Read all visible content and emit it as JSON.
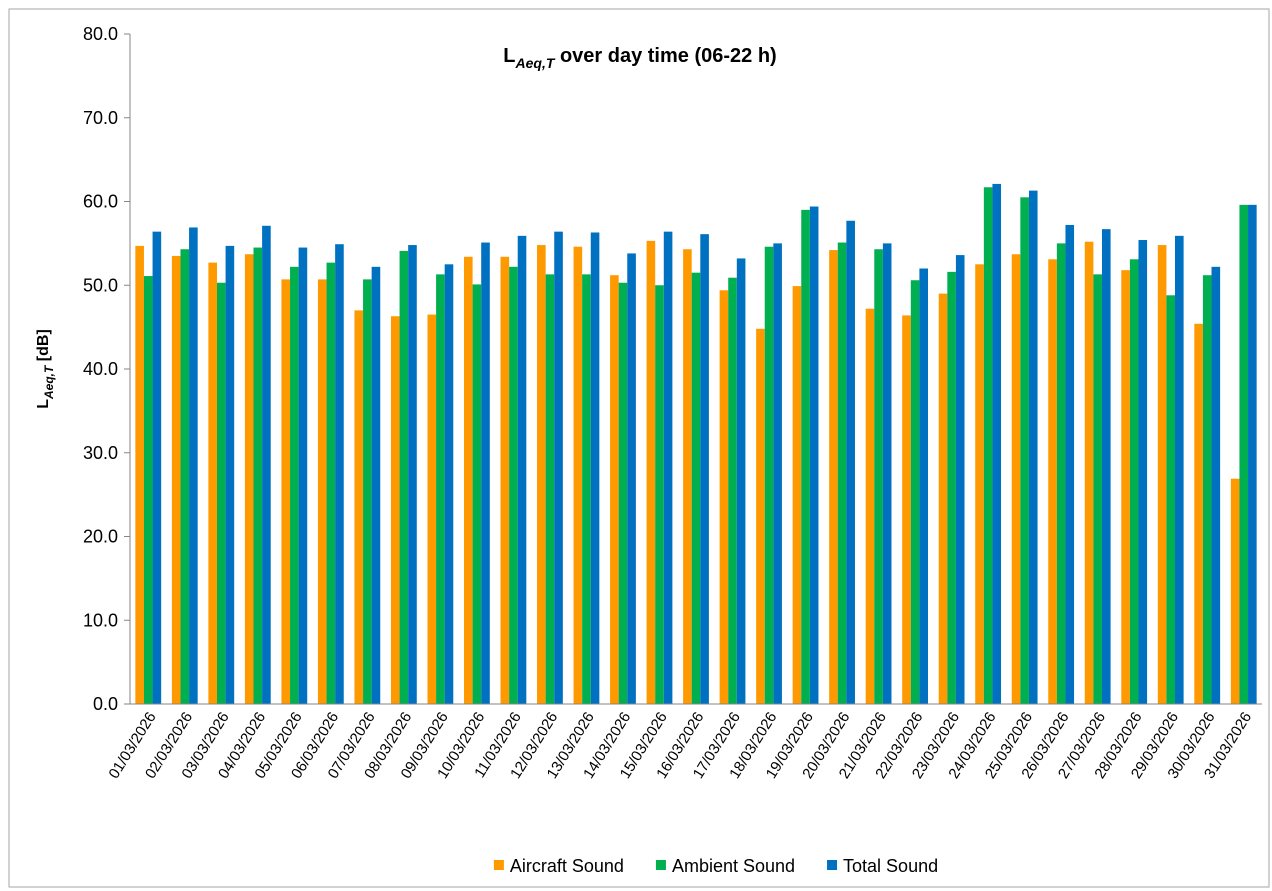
{
  "chart_data": {
    "type": "bar",
    "title_parts": [
      "L",
      "Aeq,T",
      " over day time (06-22 h)"
    ],
    "ylabel_parts": [
      "L",
      "Aeq,T",
      " [dB]"
    ],
    "categories": [
      "01/03/2026",
      "02/03/2026",
      "03/03/2026",
      "04/03/2026",
      "05/03/2026",
      "06/03/2026",
      "07/03/2026",
      "08/03/2026",
      "09/03/2026",
      "10/03/2026",
      "11/03/2026",
      "12/03/2026",
      "13/03/2026",
      "14/03/2026",
      "15/03/2026",
      "16/03/2026",
      "17/03/2026",
      "18/03/2026",
      "19/03/2026",
      "20/03/2026",
      "21/03/2026",
      "22/03/2026",
      "23/03/2026",
      "24/03/2026",
      "25/03/2026",
      "26/03/2026",
      "27/03/2026",
      "28/03/2026",
      "29/03/2026",
      "30/03/2026",
      "31/03/2026"
    ],
    "series": [
      {
        "name": "Aircraft Sound",
        "color": "#ff9900",
        "values": [
          54.7,
          53.5,
          52.7,
          53.7,
          50.7,
          50.7,
          47.0,
          46.3,
          46.5,
          53.4,
          53.4,
          54.8,
          54.6,
          51.2,
          55.3,
          54.3,
          49.4,
          44.8,
          49.9,
          54.2,
          47.2,
          46.4,
          49.0,
          52.5,
          53.7,
          53.1,
          55.2,
          51.8,
          54.8,
          45.4,
          26.9
        ]
      },
      {
        "name": "Ambient Sound",
        "color": "#00b050",
        "values": [
          51.1,
          54.3,
          50.3,
          54.5,
          52.2,
          52.7,
          50.7,
          54.1,
          51.3,
          50.1,
          52.2,
          51.3,
          51.3,
          50.3,
          50.0,
          51.5,
          50.9,
          54.6,
          59.0,
          55.1,
          54.3,
          50.6,
          51.6,
          61.7,
          60.5,
          55.0,
          51.3,
          53.1,
          48.8,
          51.2,
          59.6
        ]
      },
      {
        "name": "Total Sound",
        "color": "#0070c0",
        "values": [
          56.4,
          56.9,
          54.7,
          57.1,
          54.5,
          54.9,
          52.2,
          54.8,
          52.5,
          55.1,
          55.9,
          56.4,
          56.3,
          53.8,
          56.4,
          56.1,
          53.2,
          55.0,
          59.4,
          57.7,
          55.0,
          52.0,
          53.6,
          62.1,
          61.3,
          57.2,
          56.7,
          55.4,
          55.9,
          52.2,
          59.6
        ]
      }
    ],
    "ylim": [
      0,
      80
    ],
    "yticks": [
      {
        "value": 0,
        "label": "0.0"
      },
      {
        "value": 10,
        "label": "10.0"
      },
      {
        "value": 20,
        "label": "20.0"
      },
      {
        "value": 30,
        "label": "30.0"
      },
      {
        "value": 40,
        "label": "40.0"
      },
      {
        "value": 50,
        "label": "50.0"
      },
      {
        "value": 60,
        "label": "60.0"
      },
      {
        "value": 70,
        "label": "70.0"
      },
      {
        "value": 80,
        "label": "80.0"
      }
    ],
    "grid": false,
    "legend": "bottom"
  }
}
